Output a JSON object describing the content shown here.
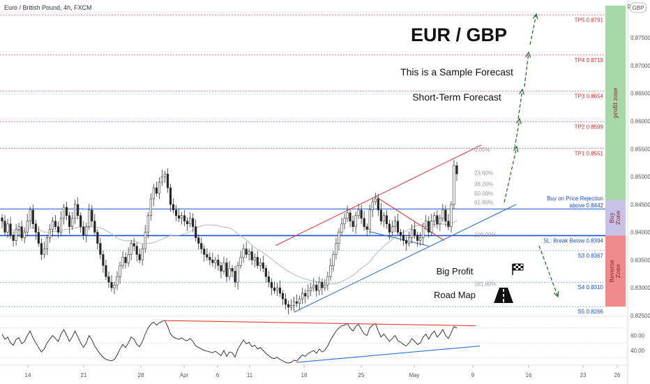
{
  "header": {
    "title": "Euro / British Pound, 4h, FXCM"
  },
  "currency_badge": "GBP",
  "axis_zero": "0",
  "colors": {
    "tp_line": "#e26a6a",
    "buy_line": "#1f4fd1",
    "support_line": "#7aa0d8",
    "up_candle": "#444444",
    "down_candle": "#222222",
    "profit_zone": "#a7d8a7",
    "buy_zone": "#c8c3e6",
    "reverse_zone": "#f08b8b",
    "arrow": "#2e6b3c",
    "red_trend": "#e23b3b",
    "blue_trend": "#2f6fd0"
  },
  "chart_data": [
    {
      "type": "candlestick",
      "title": "EUR / GBP",
      "ylim": [
        0.8255,
        0.8808
      ],
      "y_ticks": [
        {
          "value": 0.875,
          "label": "0.87500"
        },
        {
          "value": 0.87,
          "label": "0.87000"
        },
        {
          "value": 0.865,
          "label": "0.86500"
        },
        {
          "value": 0.86,
          "label": "0.86000"
        },
        {
          "value": 0.855,
          "label": "0.85500"
        },
        {
          "value": 0.85,
          "label": "0.85000"
        },
        {
          "value": 0.845,
          "label": "0.84500"
        },
        {
          "value": 0.84,
          "label": "0.84000"
        },
        {
          "value": 0.835,
          "label": "0.83500"
        },
        {
          "value": 0.83,
          "label": "0.83000"
        },
        {
          "value": 0.825,
          "label": "0.82500"
        }
      ],
      "x_ticks": [
        "14",
        "21",
        "28",
        "Apr",
        "6",
        "11",
        "18",
        "25",
        "May",
        "9",
        "16",
        "23",
        "26"
      ],
      "levels": [
        {
          "label": "TP5 0.8791",
          "value": 0.8791,
          "kind": "tp"
        },
        {
          "label": "TP4 0.8719",
          "value": 0.8719,
          "kind": "tp"
        },
        {
          "label": "TP3 0.8654",
          "value": 0.8654,
          "kind": "tp"
        },
        {
          "label": "TP2 0.8599",
          "value": 0.8599,
          "kind": "tp"
        },
        {
          "label": "TP1 0.8551",
          "value": 0.8551,
          "kind": "tp"
        },
        {
          "label": "Buy on Price Rejection",
          "label2": "above 0.8442",
          "value": 0.8442,
          "kind": "buy"
        },
        {
          "label": "SL: Break Below 0.8394",
          "value": 0.8394,
          "kind": "sl"
        },
        {
          "label": "S3 0.8367",
          "value": 0.8367,
          "kind": "s"
        },
        {
          "label": "S4 0.8310",
          "value": 0.831,
          "kind": "s"
        },
        {
          "label": "S5 0.8266",
          "value": 0.8266,
          "kind": "s"
        }
      ],
      "fib_labels": [
        {
          "label": "0.00%",
          "value": 0.8549
        },
        {
          "label": "23.60%",
          "value": 0.8507
        },
        {
          "label": "38.20%",
          "value": 0.8487
        },
        {
          "label": "50.00%",
          "value": 0.847
        },
        {
          "label": "61.80%",
          "value": 0.8454
        },
        {
          "label": "100.00%",
          "value": 0.8396
        },
        {
          "label": "161.80%",
          "value": 0.8307
        }
      ],
      "zones": [
        {
          "label": "profit zone",
          "from": 0.8458,
          "to": 0.8808,
          "kind": "profit"
        },
        {
          "label": "Buy",
          "label2": "Zone",
          "from": 0.8394,
          "to": 0.8458,
          "kind": "buy"
        },
        {
          "label": "Reverse",
          "label2": "Zone",
          "from": 0.8266,
          "to": 0.8394,
          "kind": "reverse"
        }
      ],
      "annotations": {
        "subtitle": "This is a Sample Forecast",
        "forecast": "Short-Term Forecast",
        "big_profit": "Big Profit",
        "road_map": "Road Map"
      },
      "closes": [
        0.842,
        0.84,
        0.8415,
        0.8395,
        0.8385,
        0.8405,
        0.841,
        0.839,
        0.84,
        0.842,
        0.844,
        0.8415,
        0.84,
        0.838,
        0.836,
        0.837,
        0.839,
        0.8405,
        0.842,
        0.841,
        0.84,
        0.8425,
        0.8445,
        0.843,
        0.841,
        0.8425,
        0.845,
        0.843,
        0.841,
        0.8395,
        0.841,
        0.844,
        0.842,
        0.84,
        0.838,
        0.836,
        0.834,
        0.832,
        0.831,
        0.83,
        0.8305,
        0.832,
        0.834,
        0.8355,
        0.8345,
        0.836,
        0.838,
        0.8375,
        0.836,
        0.835,
        0.837,
        0.84,
        0.843,
        0.846,
        0.848,
        0.847,
        0.849,
        0.85,
        0.8505,
        0.848,
        0.845,
        0.844,
        0.843,
        0.8425,
        0.843,
        0.842,
        0.8415,
        0.8425,
        0.841,
        0.839,
        0.838,
        0.837,
        0.836,
        0.8355,
        0.835,
        0.8345,
        0.835,
        0.834,
        0.833,
        0.8345,
        0.832,
        0.8335,
        0.833,
        0.831,
        0.834,
        0.8355,
        0.837,
        0.836,
        0.8365,
        0.835,
        0.8355,
        0.834,
        0.8345,
        0.8335,
        0.832,
        0.831,
        0.83,
        0.8295,
        0.83,
        0.829,
        0.828,
        0.827,
        0.8265,
        0.8268,
        0.8275,
        0.8272,
        0.828,
        0.829,
        0.8285,
        0.8295,
        0.83,
        0.8305,
        0.8295,
        0.831,
        0.83,
        0.8305,
        0.832,
        0.834,
        0.836,
        0.838,
        0.84,
        0.8415,
        0.8425,
        0.8435,
        0.842,
        0.841,
        0.843,
        0.844,
        0.8425,
        0.841,
        0.8405,
        0.844,
        0.8455,
        0.846,
        0.844,
        0.842,
        0.843,
        0.8415,
        0.84,
        0.841,
        0.842,
        0.84,
        0.8395,
        0.8385,
        0.838,
        0.839,
        0.8405,
        0.8395,
        0.8385,
        0.839,
        0.841,
        0.842,
        0.84,
        0.842,
        0.843,
        0.8415,
        0.8425,
        0.844,
        0.842,
        0.841,
        0.845,
        0.852,
        0.8505
      ],
      "rsi": {
        "y_ticks": [
          {
            "value": 60,
            "label": "60.00"
          },
          {
            "value": 40,
            "label": "40.00"
          }
        ],
        "ylim": [
          25,
          82
        ],
        "values": [
          62,
          55,
          58,
          50,
          47,
          55,
          57,
          49,
          52,
          60,
          66,
          57,
          50,
          44,
          38,
          42,
          50,
          55,
          60,
          56,
          52,
          62,
          68,
          60,
          52,
          58,
          66,
          58,
          50,
          44,
          50,
          60,
          54,
          46,
          40,
          35,
          31,
          28,
          27,
          26,
          28,
          34,
          42,
          48,
          44,
          50,
          58,
          55,
          48,
          45,
          52,
          62,
          70,
          75,
          78,
          74,
          77,
          79,
          80,
          72,
          62,
          58,
          56,
          55,
          57,
          54,
          53,
          56,
          52,
          46,
          44,
          42,
          40,
          39,
          38,
          37,
          39,
          36,
          33,
          40,
          32,
          38,
          37,
          31,
          42,
          48,
          54,
          49,
          51,
          45,
          47,
          42,
          44,
          40,
          36,
          33,
          30,
          29,
          31,
          28,
          26,
          24,
          23,
          24,
          27,
          26,
          30,
          34,
          32,
          36,
          38,
          40,
          36,
          42,
          38,
          40,
          46,
          54,
          60,
          66,
          70,
          73,
          74,
          76,
          70,
          66,
          72,
          75,
          68,
          62,
          60,
          70,
          74,
          76,
          66,
          58,
          62,
          57,
          52,
          56,
          60,
          53,
          51,
          48,
          46,
          50,
          56,
          52,
          48,
          50,
          58,
          62,
          55,
          62,
          66,
          58,
          62,
          68,
          60,
          56,
          64,
          72,
          70
        ]
      }
    }
  ]
}
